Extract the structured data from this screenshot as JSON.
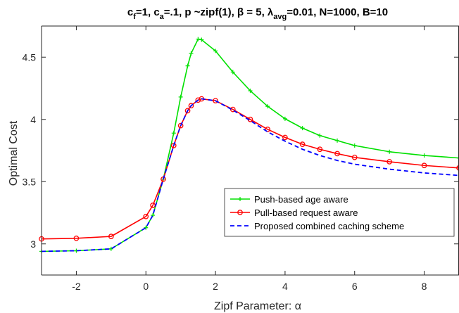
{
  "chart_data": {
    "type": "line",
    "title": {
      "parts": [
        {
          "text": "c",
          "baseline": "normal"
        },
        {
          "text": "f",
          "baseline": "sub"
        },
        {
          "text": "=1, c",
          "baseline": "normal"
        },
        {
          "text": "a",
          "baseline": "sub"
        },
        {
          "text": "=.1, p ~zipf(1), β = 5, λ",
          "baseline": "normal"
        },
        {
          "text": "avg",
          "baseline": "sub"
        },
        {
          "text": "=0.01, N=1000, B=10",
          "baseline": "normal"
        }
      ]
    },
    "xlabel": "Zipf Parameter: α",
    "ylabel": "Optimal Cost",
    "xlim": [
      -3,
      9
    ],
    "ylim": [
      2.75,
      4.75
    ],
    "xticks": [
      -2,
      0,
      2,
      4,
      6,
      8
    ],
    "yticks": [
      3,
      3.5,
      4,
      4.5
    ],
    "ytick_labels": [
      "3",
      "3.5",
      "4",
      "4.5"
    ],
    "grid": false,
    "legend_position": "lower-right",
    "series": [
      {
        "name": "Push-based age aware",
        "color": "#00e000",
        "line_style": "solid",
        "marker": "plus",
        "x": [
          -3,
          -2,
          -1,
          0,
          0.2,
          0.5,
          0.8,
          1.0,
          1.2,
          1.3,
          1.5,
          1.6,
          2.0,
          2.5,
          3.0,
          3.5,
          4.0,
          4.5,
          5.0,
          5.5,
          6.0,
          7.0,
          8.0,
          9.0
        ],
        "y": [
          2.94,
          2.945,
          2.96,
          3.13,
          3.23,
          3.52,
          3.89,
          4.18,
          4.43,
          4.53,
          4.645,
          4.64,
          4.55,
          4.38,
          4.23,
          4.105,
          4.005,
          3.93,
          3.87,
          3.83,
          3.79,
          3.74,
          3.71,
          3.69
        ]
      },
      {
        "name": "Pull-based request aware",
        "color": "#ff0000",
        "line_style": "solid",
        "marker": "circle",
        "x": [
          -3,
          -2,
          -1,
          0,
          0.2,
          0.5,
          0.8,
          1.0,
          1.2,
          1.3,
          1.5,
          1.6,
          2.0,
          2.5,
          3.0,
          3.5,
          4.0,
          4.5,
          5.0,
          5.5,
          6.0,
          7.0,
          8.0,
          9.0
        ],
        "y": [
          3.04,
          3.045,
          3.06,
          3.22,
          3.31,
          3.52,
          3.79,
          3.95,
          4.07,
          4.11,
          4.155,
          4.165,
          4.15,
          4.08,
          4.0,
          3.92,
          3.855,
          3.8,
          3.76,
          3.725,
          3.695,
          3.66,
          3.63,
          3.61
        ]
      },
      {
        "name": "Proposed combined caching scheme",
        "color": "#0000ff",
        "line_style": "dashed",
        "marker": "none",
        "x": [
          -3,
          -2,
          -1,
          0,
          0.2,
          0.5,
          0.8,
          1.0,
          1.2,
          1.3,
          1.5,
          1.6,
          2.0,
          2.5,
          3.0,
          3.5,
          4.0,
          4.5,
          5.0,
          5.5,
          6.0,
          7.0,
          8.0,
          9.0
        ],
        "y": [
          2.94,
          2.945,
          2.96,
          3.13,
          3.23,
          3.52,
          3.79,
          3.95,
          4.07,
          4.11,
          4.155,
          4.165,
          4.15,
          4.075,
          3.99,
          3.9,
          3.825,
          3.76,
          3.71,
          3.67,
          3.64,
          3.6,
          3.57,
          3.55
        ]
      }
    ]
  }
}
